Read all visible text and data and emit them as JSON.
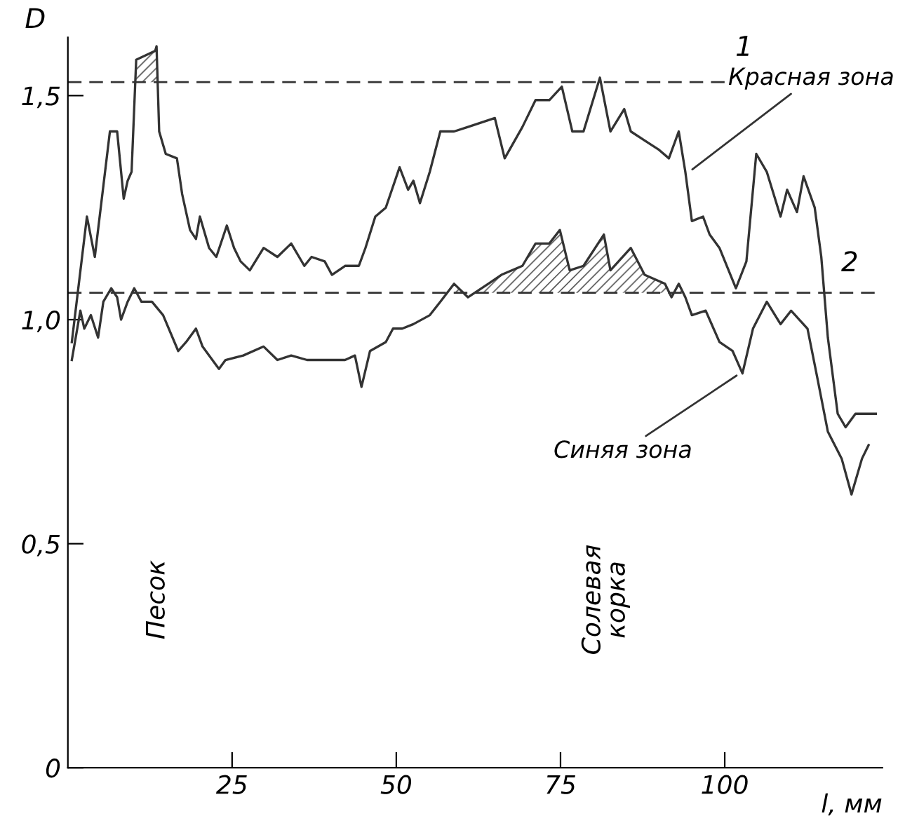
{
  "chart_data": {
    "type": "line",
    "xlabel": "l, мм",
    "ylabel": "D",
    "xlim": [
      0,
      124
    ],
    "ylim": [
      0,
      1.63
    ],
    "xticks": [
      25,
      50,
      75,
      100
    ],
    "yticks": [
      0,
      {
        "value": 0.5,
        "label": "0,5"
      },
      {
        "value": 1.0,
        "label": "1,0"
      },
      {
        "value": 1.5,
        "label": "1,5"
      }
    ],
    "grid": false,
    "legend": false,
    "marker": "none",
    "line_style": "solid",
    "series": [
      {
        "color": "#333333",
        "x": [
          0.6,
          2.9,
          4.1,
          6.4,
          7.5,
          8.5,
          9.1,
          9.7,
          10.4,
          13.3,
          13.5,
          13.9,
          14.9,
          16.6,
          17.4,
          18.6,
          19.5,
          20.1,
          21.5,
          22.6,
          24.2,
          25.3,
          26.3,
          27.7,
          29.8,
          31.9,
          34.0,
          36.0,
          37.1,
          39.1,
          40.2,
          42.2,
          44.3,
          45.3,
          46.8,
          48.4,
          50.5,
          51.8,
          52.6,
          53.6,
          55.1,
          56.7,
          58.8,
          60.9,
          65.0,
          66.5,
          69.2,
          71.2,
          73.3,
          75.2,
          76.8,
          78.5,
          81.0,
          82.6,
          84.7,
          85.7,
          87.8,
          89.9,
          91.5,
          93.0,
          94.0,
          95.0,
          96.7,
          97.7,
          99.2,
          101.7,
          103.3,
          104.8,
          106.4,
          108.5,
          109.5,
          111.0,
          112.0,
          113.7,
          114.7,
          115.7,
          117.2,
          118.4,
          119.9,
          123.0
        ],
        "values": [
          0.95,
          1.23,
          1.14,
          1.42,
          1.42,
          1.27,
          1.31,
          1.33,
          1.58,
          1.6,
          1.61,
          1.42,
          1.37,
          1.36,
          1.28,
          1.2,
          1.18,
          1.23,
          1.16,
          1.14,
          1.21,
          1.16,
          1.13,
          1.11,
          1.16,
          1.14,
          1.17,
          1.12,
          1.14,
          1.13,
          1.1,
          1.12,
          1.12,
          1.16,
          1.23,
          1.25,
          1.34,
          1.29,
          1.31,
          1.26,
          1.33,
          1.42,
          1.42,
          1.43,
          1.45,
          1.36,
          1.43,
          1.49,
          1.49,
          1.52,
          1.42,
          1.42,
          1.54,
          1.42,
          1.47,
          1.42,
          1.4,
          1.38,
          1.36,
          1.42,
          1.33,
          1.22,
          1.23,
          1.19,
          1.16,
          1.07,
          1.13,
          1.37,
          1.33,
          1.23,
          1.29,
          1.24,
          1.32,
          1.25,
          1.14,
          0.96,
          0.79,
          0.76,
          0.79,
          0.79
        ]
      },
      {
        "color": "#333333",
        "x": [
          0.6,
          1.9,
          2.5,
          3.5,
          4.6,
          5.4,
          6.6,
          7.5,
          8.1,
          9.1,
          10.1,
          11.2,
          12.8,
          14.5,
          16.8,
          18.0,
          19.5,
          20.5,
          23.0,
          24.0,
          26.7,
          29.8,
          31.9,
          34.0,
          36.4,
          39.1,
          42.2,
          43.7,
          44.7,
          46.0,
          48.4,
          49.5,
          50.9,
          52.6,
          55.1,
          56.7,
          58.8,
          60.9,
          64.0,
          66.0,
          69.2,
          71.2,
          73.3,
          74.9,
          76.4,
          78.5,
          81.6,
          82.6,
          85.7,
          87.8,
          90.9,
          91.9,
          93.0,
          94.0,
          95.0,
          97.1,
          99.2,
          101.2,
          102.7,
          104.3,
          106.4,
          108.5,
          110.1,
          112.6,
          114.1,
          115.7,
          117.8,
          119.3,
          120.9,
          121.9
        ],
        "values": [
          0.91,
          1.02,
          0.98,
          1.01,
          0.96,
          1.04,
          1.07,
          1.05,
          1.0,
          1.04,
          1.07,
          1.04,
          1.04,
          1.01,
          0.93,
          0.95,
          0.98,
          0.94,
          0.89,
          0.91,
          0.92,
          0.94,
          0.91,
          0.92,
          0.91,
          0.91,
          0.91,
          0.92,
          0.85,
          0.93,
          0.95,
          0.98,
          0.98,
          0.99,
          1.01,
          1.04,
          1.08,
          1.05,
          1.08,
          1.1,
          1.12,
          1.17,
          1.17,
          1.2,
          1.11,
          1.12,
          1.19,
          1.11,
          1.16,
          1.1,
          1.08,
          1.05,
          1.08,
          1.05,
          1.01,
          1.02,
          0.95,
          0.93,
          0.88,
          0.98,
          1.04,
          0.99,
          1.02,
          0.98,
          0.87,
          0.75,
          0.69,
          0.61,
          0.69,
          0.72
        ]
      }
    ],
    "ref_lines": [
      {
        "axis": "y",
        "value": 1.53,
        "line_style": "dashed",
        "color": "#333333"
      },
      {
        "axis": "y",
        "value": 1.06,
        "line_style": "dashed",
        "color": "#333333"
      }
    ],
    "annotations": [
      {
        "text": "Красная зона",
        "x": 94.6,
        "y": 1.33
      },
      {
        "text": "Синяя зона",
        "x": 102.3,
        "y": 0.88
      },
      "Песок",
      "Солевая\nкорка",
      "1",
      "2"
    ]
  }
}
